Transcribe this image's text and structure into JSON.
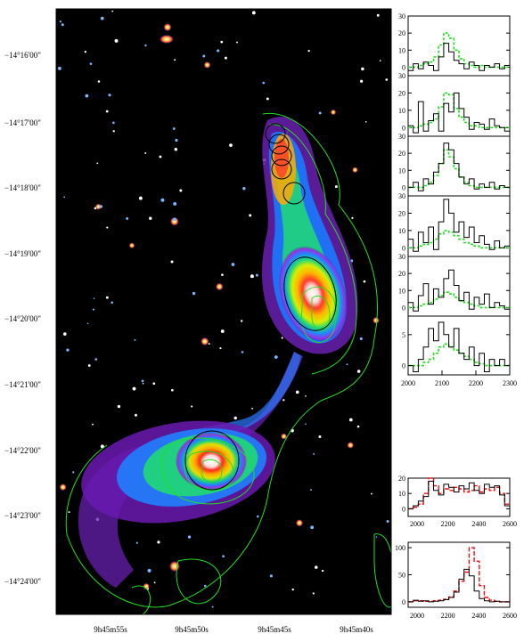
{
  "image_axes": {
    "dec_labels": [
      "−14°16'00\"",
      "−14°17'00\"",
      "−14°18'00\"",
      "−14°19'00\"",
      "−14°20'00\"",
      "−14°21'00\"",
      "−14°22'00\"",
      "−14°23'00\"",
      "−14°24'00\""
    ],
    "ra_labels": [
      "9h45m55s",
      "9h45m50s",
      "9h45m45s",
      "9h45m40s"
    ]
  },
  "chart_data": [
    {
      "type": "line",
      "panel": "upper-stack",
      "xlim": [
        2000,
        2300
      ],
      "x_ticks": [
        "2000",
        "2100",
        "2200",
        "2300"
      ],
      "panels": [
        {
          "yticks": [
            "0",
            "10",
            "20",
            "30"
          ],
          "ylim": [
            -5,
            30
          ],
          "black": [
            -2,
            2,
            -1,
            3,
            1,
            -2,
            6,
            14,
            9,
            4,
            2,
            -1,
            3,
            1,
            -2,
            1,
            0,
            2,
            -1,
            1
          ],
          "green": [
            0,
            0,
            1,
            2,
            3,
            6,
            13,
            20,
            17,
            10,
            5,
            2,
            1,
            0,
            1,
            0,
            0,
            0,
            0,
            0
          ]
        },
        {
          "yticks": [
            "0",
            "10",
            "20",
            "30"
          ],
          "ylim": [
            -5,
            30
          ],
          "black": [
            1,
            -3,
            15,
            -2,
            4,
            8,
            -2,
            14,
            9,
            20,
            11,
            6,
            -1,
            3,
            2,
            -1,
            5,
            1,
            0,
            -2
          ],
          "green": [
            0,
            0,
            1,
            2,
            3,
            5,
            12,
            20,
            19,
            11,
            6,
            3,
            1,
            1,
            0,
            0,
            0,
            0,
            0,
            0
          ]
        },
        {
          "yticks": [
            "0",
            "10",
            "20",
            "30"
          ],
          "ylim": [
            -5,
            30
          ],
          "black": [
            0,
            3,
            -2,
            5,
            2,
            9,
            14,
            26,
            22,
            14,
            6,
            2,
            5,
            -1,
            2,
            0,
            3,
            -1,
            1,
            0
          ],
          "green": [
            0,
            0,
            0,
            1,
            3,
            7,
            14,
            22,
            18,
            11,
            6,
            3,
            1,
            0,
            0,
            0,
            0,
            0,
            0,
            0
          ]
        },
        {
          "yticks": [
            "0",
            "10",
            "20",
            "30"
          ],
          "ylim": [
            -5,
            30
          ],
          "black": [
            5,
            -2,
            9,
            3,
            12,
            -1,
            15,
            28,
            20,
            9,
            15,
            6,
            12,
            3,
            7,
            2,
            -1,
            4,
            0,
            1
          ],
          "green": [
            0,
            0,
            1,
            2,
            3,
            5,
            8,
            10,
            9,
            7,
            5,
            3,
            2,
            1,
            0,
            0,
            0,
            0,
            0,
            0
          ]
        },
        {
          "yticks": [
            "0",
            "10",
            "20",
            "30"
          ],
          "ylim": [
            -5,
            30
          ],
          "black": [
            3,
            -2,
            7,
            14,
            2,
            11,
            6,
            17,
            22,
            13,
            4,
            9,
            -1,
            6,
            2,
            8,
            0,
            3,
            1,
            -1
          ],
          "green": [
            0,
            0,
            1,
            2,
            3,
            5,
            7,
            9,
            8,
            6,
            4,
            3,
            2,
            1,
            0,
            0,
            0,
            0,
            0,
            0
          ]
        },
        {
          "yticks": [
            "0",
            "5"
          ],
          "ylim": [
            -1.5,
            8
          ],
          "black": [
            0,
            -1,
            1,
            3,
            6,
            4,
            7,
            5,
            3,
            6,
            2,
            1,
            3,
            0,
            2,
            -1,
            1,
            0,
            1,
            0
          ],
          "green": [
            0,
            0,
            0,
            0.5,
            1,
            2,
            3,
            3.5,
            3,
            2.5,
            2,
            1.5,
            1,
            0.5,
            0.3,
            0,
            0,
            0,
            0,
            0
          ]
        }
      ]
    },
    {
      "type": "line",
      "panel": "middle",
      "xlim": [
        1900,
        2650
      ],
      "x_ticks": [
        "2000",
        "2200",
        "2400",
        "2600"
      ],
      "yticks": [
        "0",
        "10",
        "20"
      ],
      "ylim": [
        -5,
        20
      ],
      "black": [
        0,
        2,
        5,
        8,
        18,
        12,
        9,
        16,
        14,
        11,
        15,
        13,
        17,
        12,
        10,
        16,
        14,
        15,
        9,
        2
      ],
      "red": [
        0,
        1,
        3,
        10,
        20,
        15,
        10,
        13,
        12,
        14,
        13,
        11,
        12,
        15,
        11,
        13,
        12,
        14,
        10,
        3
      ]
    },
    {
      "type": "line",
      "panel": "bottom",
      "xlim": [
        1900,
        2650
      ],
      "x_ticks": [
        "2000",
        "2200",
        "2400",
        "2600"
      ],
      "yticks": [
        "0",
        "50",
        "100"
      ],
      "ylim": [
        -10,
        110
      ],
      "black": [
        0,
        3,
        1,
        2,
        0,
        1,
        2,
        4,
        8,
        18,
        42,
        60,
        48,
        20,
        6,
        2,
        0,
        1,
        0,
        0
      ],
      "red": [
        0,
        2,
        2,
        1,
        1,
        2,
        3,
        5,
        9,
        20,
        38,
        55,
        100,
        75,
        30,
        8,
        3,
        1,
        0,
        0
      ]
    }
  ]
}
